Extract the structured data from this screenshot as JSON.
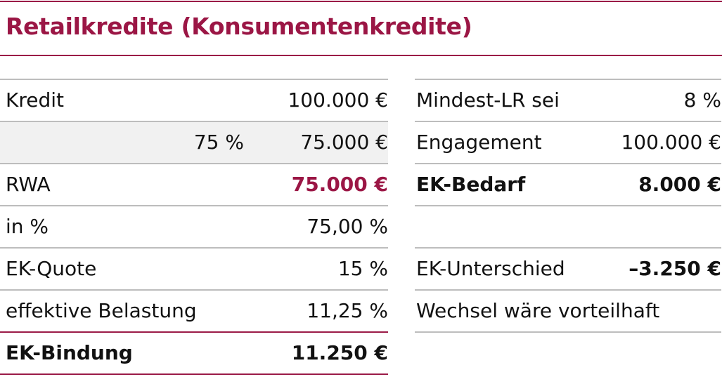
{
  "title": "Retailkredite (Konsumentenkredite)",
  "colors": {
    "accent": "#9b1645",
    "rule": "#bdbdbd",
    "shade": "#f1f1f1"
  },
  "left": [
    {
      "label": "Kredit",
      "value": "100.000 €"
    },
    {
      "label": "",
      "mid": "75 %",
      "value": "75.000 €"
    },
    {
      "label": "RWA",
      "value": "75.000 €"
    },
    {
      "label": "in %",
      "value": "75,00 %"
    },
    {
      "label": "EK-Quote",
      "value": "15 %"
    },
    {
      "label": "effektive Belastung",
      "value": "11,25 %"
    },
    {
      "label": "EK-Bindung",
      "value": "11.250 €"
    }
  ],
  "right": [
    {
      "label": "Mindest-LR sei",
      "value": "8 %"
    },
    {
      "label": "Engagement",
      "value": "100.000 €"
    },
    {
      "label": "EK-Bedarf",
      "value": "8.000 €"
    },
    {
      "label": "",
      "value": ""
    },
    {
      "label": "EK-Unterschied",
      "value": "–3.250 €"
    },
    {
      "label": "Wechsel wäre vorteilhaft",
      "value": ""
    }
  ]
}
